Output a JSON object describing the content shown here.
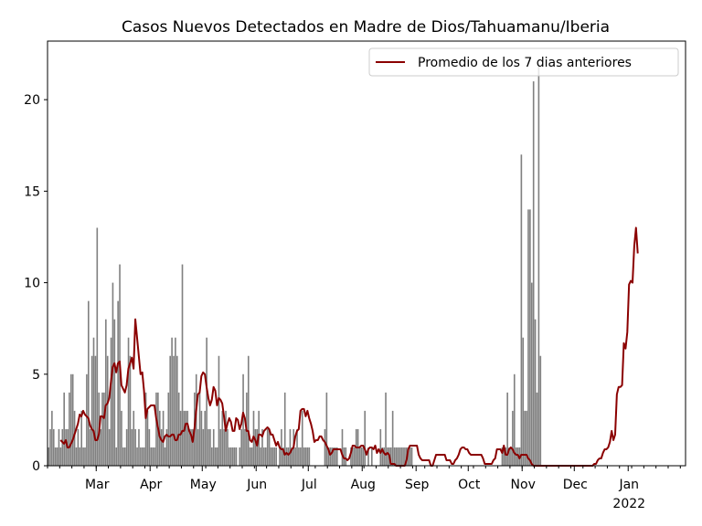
{
  "chart_data": {
    "type": "bar",
    "title": "Casos Nuevos Detectados en Madre de Dios/Tahuamanu/Iberia",
    "xlabel": "",
    "ylabel": "",
    "x_start": "2021-02-01",
    "x_end": "2022-02-03",
    "ylim": [
      0,
      23.2
    ],
    "y_ticks": [
      0,
      5,
      10,
      15,
      20
    ],
    "x_ticks": [
      {
        "date": "2021-03-01",
        "label": "Mar"
      },
      {
        "date": "2021-04-01",
        "label": "Apr"
      },
      {
        "date": "2021-05-01",
        "label": "May"
      },
      {
        "date": "2021-06-01",
        "label": "Jun"
      },
      {
        "date": "2021-07-01",
        "label": "Jul"
      },
      {
        "date": "2021-08-01",
        "label": "Aug"
      },
      {
        "date": "2021-09-01",
        "label": "Sep"
      },
      {
        "date": "2021-10-01",
        "label": "Oct"
      },
      {
        "date": "2021-11-01",
        "label": "Nov"
      },
      {
        "date": "2021-12-01",
        "label": "Dec"
      },
      {
        "date": "2022-01-01",
        "label": "Jan",
        "sublabel": "2022"
      }
    ],
    "legend": {
      "position": "top-right",
      "entries": [
        {
          "label": "Promedio de los 7 dias anteriores",
          "color": "#8b0000"
        }
      ]
    },
    "grid": false,
    "bar_color": "#808080",
    "line_color": "#8b0000",
    "series": [
      {
        "kind": "bar",
        "values": [
          1,
          2,
          3,
          2,
          1,
          1,
          2,
          1,
          2,
          4,
          2,
          2,
          4,
          5,
          5,
          3,
          1,
          2,
          1,
          3,
          1,
          1,
          5,
          9,
          2,
          6,
          7,
          6,
          13,
          4,
          2,
          4,
          4,
          8,
          6,
          2,
          7,
          10,
          8,
          1,
          9,
          11,
          3,
          1,
          1,
          2,
          7,
          6,
          2,
          3,
          2,
          1,
          2,
          1,
          1,
          1,
          4,
          3,
          2,
          1,
          1,
          1,
          4,
          4,
          3,
          2,
          3,
          1,
          2,
          4,
          6,
          7,
          6,
          7,
          6,
          4,
          3,
          11,
          3,
          3,
          3,
          2,
          2,
          2,
          4,
          5,
          2,
          4,
          3,
          2,
          3,
          7,
          2,
          2,
          1,
          2,
          1,
          1,
          6,
          2,
          3,
          2,
          3,
          2,
          1,
          1,
          1,
          1,
          1,
          0,
          1,
          2,
          5,
          2,
          4,
          6,
          1,
          1,
          3,
          2,
          2,
          3,
          1,
          2,
          1,
          1,
          2,
          2,
          1,
          1,
          1,
          1,
          0,
          1,
          2,
          1,
          4,
          1,
          1,
          2,
          1,
          2,
          1,
          2,
          1,
          1,
          3,
          1,
          1,
          1,
          1,
          0,
          0,
          0,
          0,
          0,
          0,
          0,
          0,
          2,
          4,
          1,
          1,
          1,
          1,
          1,
          1,
          0,
          0,
          2,
          1,
          1,
          0,
          0,
          1,
          1,
          1,
          2,
          2,
          1,
          1,
          1,
          3,
          0,
          1,
          0,
          1,
          0,
          0,
          0,
          0,
          2,
          1,
          1,
          4,
          1,
          1,
          1,
          3,
          1,
          1,
          1,
          1,
          1,
          1,
          1,
          1,
          1,
          1,
          1,
          0,
          0,
          0,
          0,
          0,
          0,
          0,
          0,
          0,
          0,
          0,
          0,
          0,
          0,
          0,
          0,
          0,
          0,
          0,
          0,
          0,
          0,
          0,
          0,
          0,
          0,
          0,
          0,
          0,
          0,
          0,
          0,
          0,
          0,
          0,
          0,
          0,
          0,
          0,
          0,
          0,
          0,
          0,
          0,
          0,
          0,
          0,
          0,
          0,
          0,
          0,
          1,
          1,
          1,
          4,
          1,
          1,
          3,
          5,
          1,
          1,
          1,
          17,
          7,
          3,
          3,
          14,
          14,
          10,
          21,
          8,
          4,
          22,
          6
        ]
      },
      {
        "kind": "line",
        "name": "Promedio de los 7 dias anteriores",
        "start_index": 7,
        "values": [
          1.4,
          1.3,
          1.2,
          1.4,
          1.0,
          1.0,
          1.2,
          1.4,
          1.7,
          2.0,
          2.3,
          2.8,
          2.7,
          3.0,
          2.8,
          2.7,
          2.6,
          2.2,
          2.0,
          1.9,
          1.4,
          1.4,
          1.7,
          2.7,
          2.7,
          2.6,
          3.3,
          3.4,
          3.7,
          4.6,
          5.4,
          5.6,
          5.1,
          5.6,
          5.7,
          4.4,
          4.2,
          4.0,
          4.4,
          5.3,
          5.6,
          5.9,
          5.3,
          8.0,
          7.0,
          6.0,
          5.0,
          5.1,
          4.1,
          2.6,
          3.1,
          3.2,
          3.3,
          3.3,
          3.3,
          2.6,
          2.1,
          1.6,
          1.4,
          1.3,
          1.6,
          1.7,
          1.6,
          1.6,
          1.7,
          1.7,
          1.4,
          1.4,
          1.7,
          1.7,
          1.9,
          1.9,
          2.3,
          2.3,
          1.9,
          1.7,
          1.3,
          2.0,
          3.0,
          3.9,
          4.0,
          4.9,
          5.1,
          5.0,
          4.3,
          3.7,
          3.3,
          3.6,
          4.3,
          4.1,
          3.3,
          3.7,
          3.6,
          3.4,
          2.7,
          1.9,
          2.3,
          2.6,
          2.4,
          1.9,
          1.9,
          2.6,
          2.5,
          2.0,
          2.3,
          2.9,
          2.6,
          1.9,
          1.9,
          1.4,
          1.3,
          1.6,
          1.4,
          1.1,
          1.7,
          1.7,
          1.6,
          1.9,
          2.0,
          2.1,
          2.0,
          1.7,
          1.7,
          1.4,
          1.1,
          1.3,
          1.0,
          0.9,
          0.9,
          0.6,
          0.7,
          0.6,
          0.7,
          0.9,
          1.0,
          1.6,
          1.9,
          2.0,
          3.0,
          3.1,
          3.1,
          2.7,
          3.0,
          2.6,
          2.3,
          1.9,
          1.3,
          1.4,
          1.4,
          1.6,
          1.6,
          1.4,
          1.3,
          1.1,
          0.9,
          0.6,
          0.7,
          0.9,
          0.9,
          0.9,
          0.9,
          0.9,
          0.6,
          0.4,
          0.4,
          0.3,
          0.4,
          0.7,
          1.1,
          1.1,
          1.0,
          1.0,
          1.0,
          1.1,
          1.1,
          0.9,
          0.6,
          0.9,
          1.0,
          1.0,
          0.9,
          1.1,
          0.7,
          0.9,
          0.7,
          0.9,
          0.7,
          0.6,
          0.7,
          0.6,
          0.1,
          0.1,
          0.1,
          0.0,
          0.0,
          0.0,
          0.0,
          0.0,
          0.0,
          0.3,
          0.9,
          1.1,
          1.1,
          1.1,
          1.1,
          1.1,
          0.6,
          0.4,
          0.3,
          0.3,
          0.3,
          0.3,
          0.3,
          0.0,
          0.0,
          0.3,
          0.6,
          0.6,
          0.6,
          0.6,
          0.6,
          0.6,
          0.3,
          0.3,
          0.3,
          0.1,
          0.1,
          0.3,
          0.4,
          0.6,
          0.9,
          1.0,
          1.0,
          0.9,
          0.9,
          0.7,
          0.6,
          0.6,
          0.6,
          0.6,
          0.6,
          0.6,
          0.6,
          0.4,
          0.1,
          0.1,
          0.1,
          0.1,
          0.1,
          0.3,
          0.4,
          0.9,
          0.9,
          0.9,
          0.7,
          1.1,
          0.6,
          0.6,
          0.9,
          1.0,
          0.9,
          0.7,
          0.6,
          0.6,
          0.4,
          0.6,
          0.6,
          0.6,
          0.6,
          0.4,
          0.3,
          0.1,
          0.0,
          0.0,
          0.0,
          0.0,
          0.0,
          0.0,
          0.0,
          0.0,
          0.0,
          0.0,
          0.0,
          0.0,
          0.0,
          0.0,
          0.0,
          0.0,
          0.0,
          0.0,
          0.0,
          0.0,
          0.0,
          0.0,
          0.0,
          0.0,
          0.0,
          0.0,
          0.0,
          0.0,
          0.0,
          0.0,
          0.0,
          0.0,
          0.0,
          0.0,
          0.0,
          0.1,
          0.1,
          0.3,
          0.4,
          0.4,
          0.7,
          0.9,
          0.9,
          1.0,
          1.3,
          1.9,
          1.4,
          1.7,
          3.9,
          4.3,
          4.3,
          4.4,
          6.7,
          6.4,
          7.3,
          9.9,
          10.1,
          10.0,
          12.0,
          13.0,
          11.6
        ]
      }
    ]
  }
}
